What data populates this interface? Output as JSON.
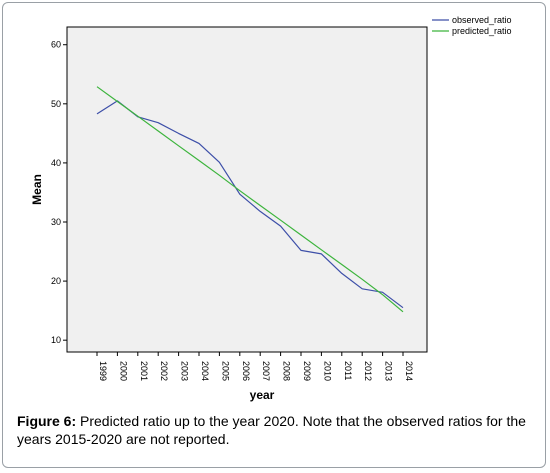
{
  "chart_data": {
    "type": "line",
    "xlabel": "year",
    "ylabel": "Mean",
    "x": [
      1999,
      2000,
      2001,
      2002,
      2003,
      2004,
      2005,
      2006,
      2007,
      2008,
      2009,
      2010,
      2011,
      2012,
      2013,
      2014
    ],
    "x_tick_labels": [
      "1999",
      "2000",
      "2001",
      "2002",
      "2003",
      "2004",
      "2005",
      "2006",
      "2007",
      "2008",
      "2009",
      "2010",
      "2011",
      "2012",
      "2013",
      "2014"
    ],
    "ylim": [
      8,
      63
    ],
    "y_ticks": [
      10,
      20,
      30,
      40,
      50,
      60
    ],
    "grid": false,
    "legend_position": "top-right-outside",
    "series": [
      {
        "name": "observed_ratio",
        "color": "#3d4fa8",
        "values": [
          48.3,
          50.5,
          47.8,
          46.8,
          45.0,
          43.3,
          40.1,
          34.7,
          31.8,
          29.3,
          25.2,
          24.6,
          21.3,
          18.7,
          18.1,
          15.5
        ]
      },
      {
        "name": "predicted_ratio",
        "color": "#3cb43c",
        "values": [
          52.9,
          50.4,
          47.9,
          45.4,
          42.9,
          40.4,
          37.9,
          35.3,
          32.8,
          30.3,
          27.8,
          25.3,
          22.8,
          20.3,
          17.7,
          14.8
        ]
      }
    ],
    "plot_background": "#f0f0f0"
  },
  "caption": {
    "label": "Figure 6:",
    "text": " Predicted ratio up to the year 2020. Note that the observed ratios for the years 2015-2020 are not reported."
  }
}
